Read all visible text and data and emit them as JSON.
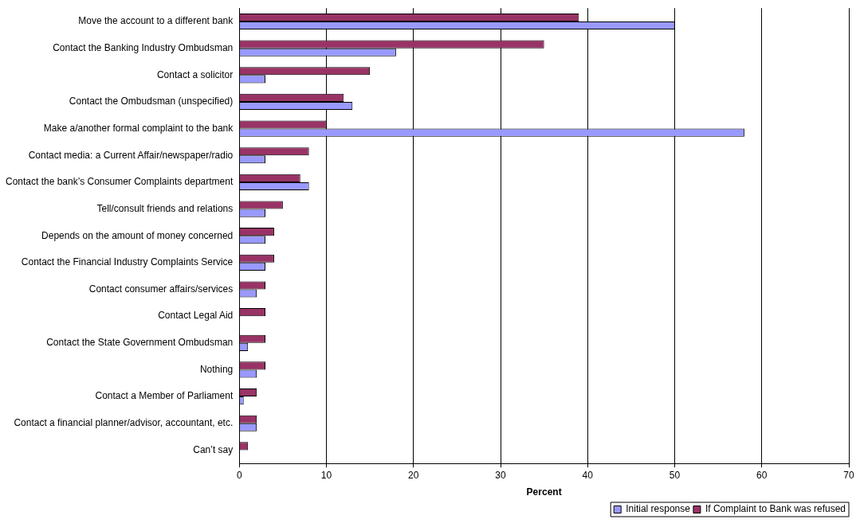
{
  "chart_data": {
    "type": "bar",
    "orientation": "horizontal",
    "xlabel": "Percent",
    "categories": [
      "Move the account to a different bank",
      "Contact the Banking Industry Ombudsman",
      "Contact a solicitor",
      "Contact the Ombudsman (unspecified)",
      "Make a/another formal complaint to the bank",
      "Contact media: a Current Affair/newspaper/radio",
      "Contact the bank’s Consumer Complaints department",
      "Tell/consult friends and relations",
      "Depends on the amount of money concerned",
      "Contact the Financial Industry Complaints Service",
      "Contact consumer affairs/services",
      "Contact Legal Aid",
      "Contact the State Government Ombudsman",
      "Nothing",
      "Contact a Member of Parliament",
      "Contact a financial planner/advisor, accountant, etc.",
      "Can’t say"
    ],
    "series": [
      {
        "name": "Initial response",
        "color": "#9999ff",
        "values": [
          50,
          18,
          3,
          13,
          58,
          3,
          8,
          3,
          3,
          3,
          2,
          null,
          1,
          2,
          0.5,
          2,
          null
        ]
      },
      {
        "name": "If Complaint to Bank was refused",
        "color": "#993366",
        "values": [
          39,
          35,
          15,
          12,
          10,
          8,
          7,
          5,
          4,
          4,
          3,
          3,
          3,
          3,
          2,
          2,
          1
        ]
      }
    ],
    "xlim": [
      0,
      70
    ],
    "xticks": [
      0,
      10,
      20,
      30,
      40,
      50,
      60,
      70
    ],
    "grid": "x",
    "legend": "bottom right"
  }
}
